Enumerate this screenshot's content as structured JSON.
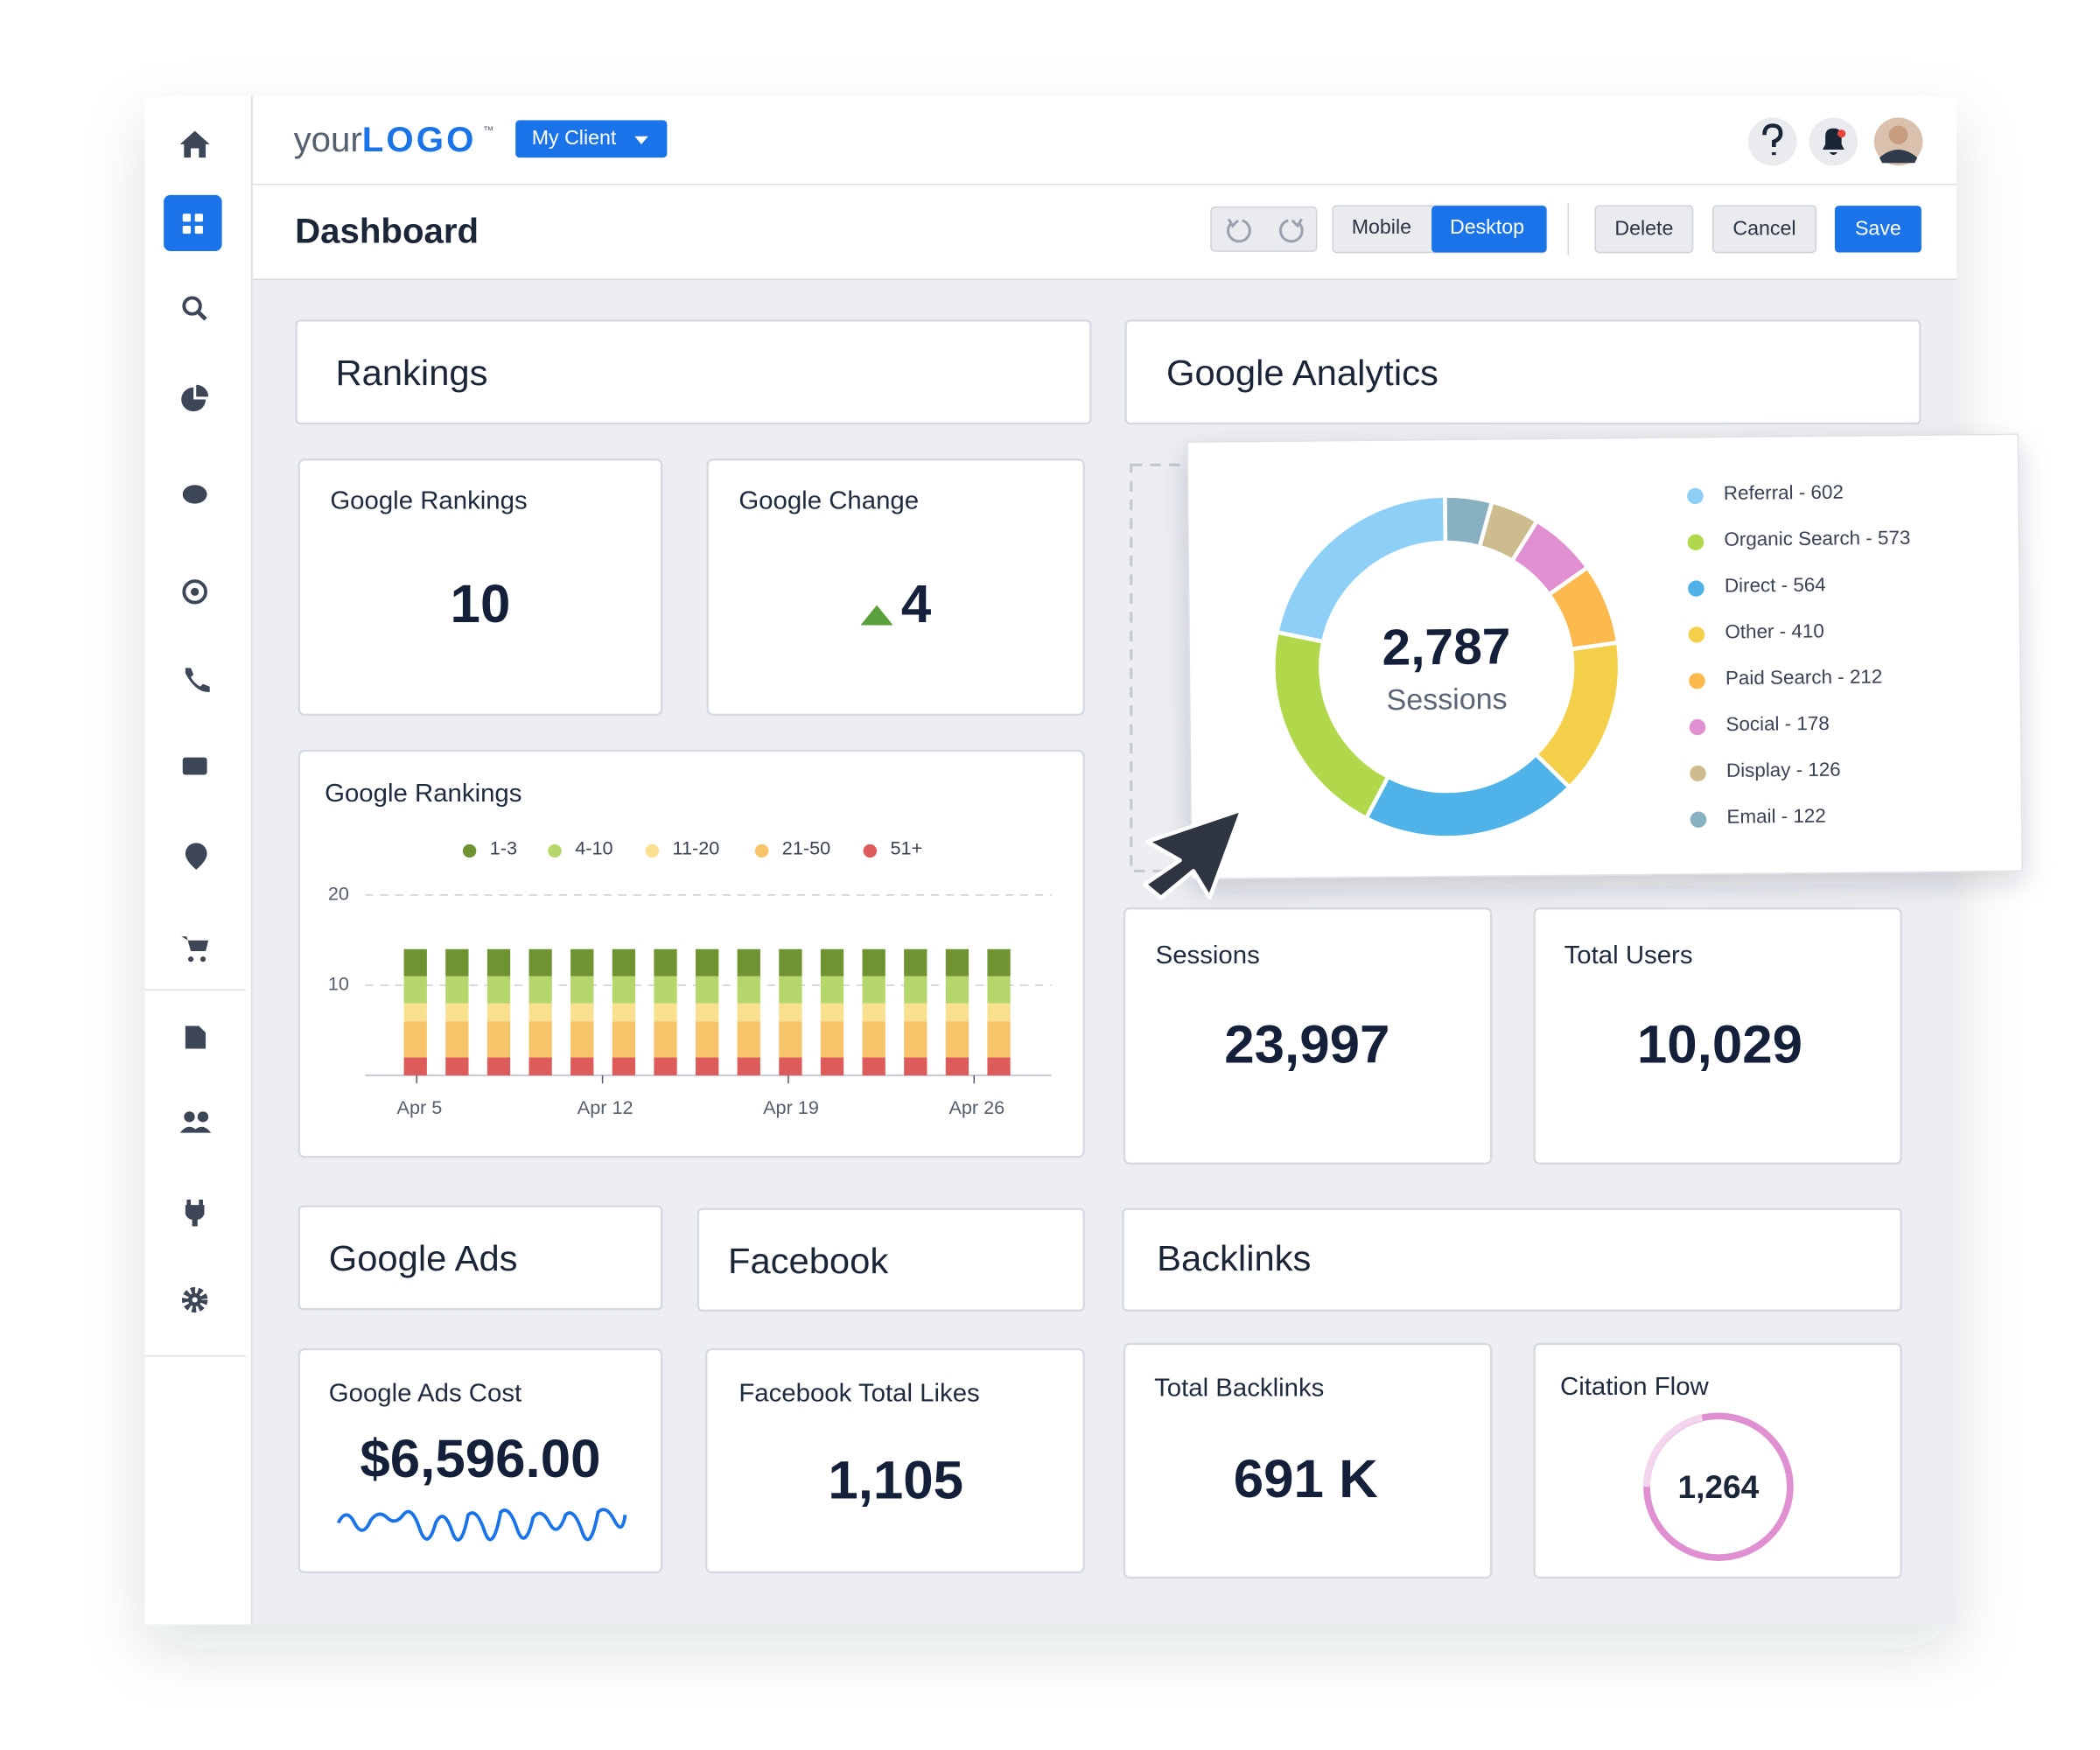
{
  "header": {
    "logo_prefix": "your",
    "logo_main": "LOGO",
    "trademark": "™",
    "client": "My Client"
  },
  "toolbar": {
    "title": "Dashboard",
    "mobile": "Mobile",
    "desktop": "Desktop",
    "delete": "Delete",
    "cancel": "Cancel",
    "save": "Save"
  },
  "sections": {
    "rankings": "Rankings",
    "analytics": "Google Analytics",
    "ads": "Google Ads",
    "facebook": "Facebook",
    "backlinks": "Backlinks"
  },
  "widgets": [
    {
      "title": "Google Rankings",
      "value": "10"
    },
    {
      "title": "Google Change",
      "value": "4"
    },
    {
      "title": "Sessions",
      "value": "23,997"
    },
    {
      "title": "Total Users",
      "value": "10,029"
    },
    {
      "title": "Google Ads Cost",
      "value": "$6,596.00"
    },
    {
      "title": "Facebook Total Likes",
      "value": "1,105"
    },
    {
      "title": "Total Backlinks",
      "value": "691 K"
    },
    {
      "title": "Citation Flow",
      "value": "1,264"
    }
  ],
  "chart_data": [
    {
      "type": "bar",
      "stacked": true,
      "title": "Google Rankings",
      "categories": [
        null,
        null,
        null,
        null,
        null,
        null,
        null,
        null,
        null,
        null,
        null,
        null,
        null,
        null,
        null
      ],
      "xticks": [
        "Apr 5",
        "Apr 12",
        "Apr 19",
        "Apr 26"
      ],
      "ylim": [
        0,
        20
      ],
      "yticks": [
        10,
        20
      ],
      "grid": true,
      "series": [
        {
          "name": "1-3",
          "color": "#6e9330",
          "values": [
            3,
            3,
            3,
            3,
            3,
            3,
            3,
            3,
            3,
            3,
            3,
            3,
            3,
            3,
            3
          ]
        },
        {
          "name": "4-10",
          "color": "#b5d66a",
          "values": [
            3,
            3,
            3,
            3,
            3,
            3,
            3,
            3,
            3,
            3,
            3,
            3,
            3,
            3,
            3
          ]
        },
        {
          "name": "11-20",
          "color": "#f8e08e",
          "values": [
            2,
            2,
            2,
            2,
            2,
            2,
            2,
            2,
            2,
            2,
            2,
            2,
            2,
            2,
            2
          ]
        },
        {
          "name": "21-50",
          "color": "#f7c46a",
          "values": [
            4,
            4,
            4,
            4,
            4,
            4,
            4,
            4,
            4,
            4,
            4,
            4,
            4,
            4,
            4
          ]
        },
        {
          "name": "51+",
          "color": "#de5b5b",
          "values": [
            2,
            2,
            2,
            2,
            2,
            2,
            2,
            2,
            2,
            2,
            2,
            2,
            2,
            2,
            2
          ]
        }
      ]
    },
    {
      "type": "pie",
      "donut": true,
      "center_value": "2,787",
      "center_label": "Sessions",
      "labels": [
        "Referral - 602",
        "Organic Search - 573",
        "Direct - 564",
        "Other - 410",
        "Paid Search - 212",
        "Social - 178",
        "Display - 126",
        "Email - 122"
      ],
      "values": [
        602,
        573,
        564,
        410,
        212,
        178,
        126,
        122
      ],
      "colors": [
        "#8ecff7",
        "#b1d84b",
        "#4fb3ea",
        "#f4d04a",
        "#fdb94e",
        "#e08fd1",
        "#cdbd8e",
        "#87b0c0"
      ]
    }
  ]
}
